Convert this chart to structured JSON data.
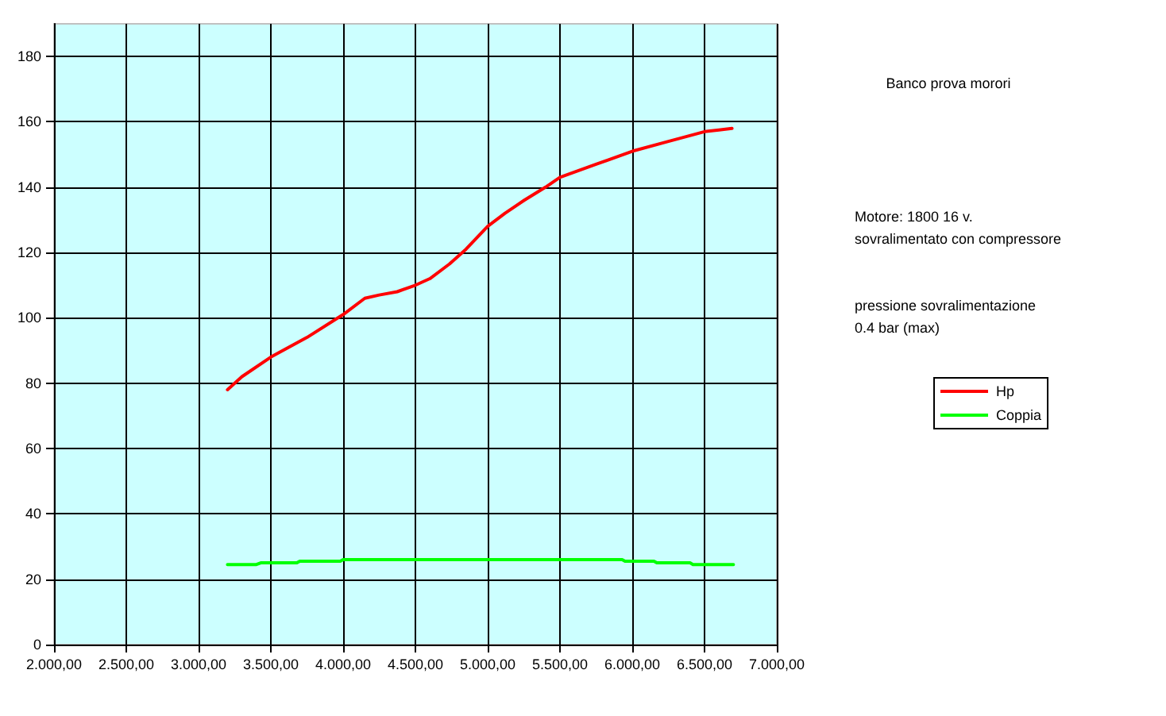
{
  "chart_data": {
    "type": "line",
    "annotations": [
      "Banco prova morori",
      "Motore: 1800 16 v.",
      "sovralimentato con compressore",
      "pressione sovralimentazione",
      "0.4 bar (max)"
    ],
    "series": [
      {
        "name": "Hp",
        "color": "#ff0000",
        "x": [
          3200,
          3300,
          3500,
          3750,
          4000,
          4150,
          4250,
          4374,
          4500,
          4600,
          4736,
          4850,
          5000,
          5120,
          5253,
          5400,
          5500,
          5750,
          6000,
          6250,
          6500,
          6600,
          6690
        ],
        "values": [
          78,
          82,
          88,
          94,
          101,
          106,
          107,
          108,
          110,
          112,
          116.5,
          121,
          128,
          132,
          136,
          140,
          143,
          147,
          151,
          154,
          157,
          157.5,
          158
        ]
      },
      {
        "name": "Coppia",
        "color": "#00ff00",
        "x": [
          3200,
          3400,
          3430,
          3680,
          3700,
          3980,
          4000,
          5930,
          5950,
          6150,
          6170,
          6400,
          6420,
          6700
        ],
        "values": [
          24.5,
          24.5,
          25,
          25,
          25.5,
          25.5,
          26,
          26,
          25.5,
          25.5,
          25,
          25,
          24.5,
          24.5
        ]
      }
    ],
    "xlim": [
      2000,
      7000
    ],
    "xticks": [
      {
        "value": 2000,
        "label": "2.000,00"
      },
      {
        "value": 2500,
        "label": "2.500,00"
      },
      {
        "value": 3000,
        "label": "3.000,00"
      },
      {
        "value": 3500,
        "label": "3.500,00"
      },
      {
        "value": 4000,
        "label": "4.000,00"
      },
      {
        "value": 4500,
        "label": "4.500,00"
      },
      {
        "value": 5000,
        "label": "5.000,00"
      },
      {
        "value": 5500,
        "label": "5.500,00"
      },
      {
        "value": 6000,
        "label": "6.000,00"
      },
      {
        "value": 6500,
        "label": "6.500,00"
      },
      {
        "value": 7000,
        "label": "7.000,00"
      }
    ],
    "ylim": [
      0,
      190
    ],
    "yticks": [
      0,
      20,
      40,
      60,
      80,
      100,
      120,
      140,
      160,
      180
    ],
    "grid": true,
    "legend": "right",
    "marker": "none",
    "line_style": "solid"
  }
}
